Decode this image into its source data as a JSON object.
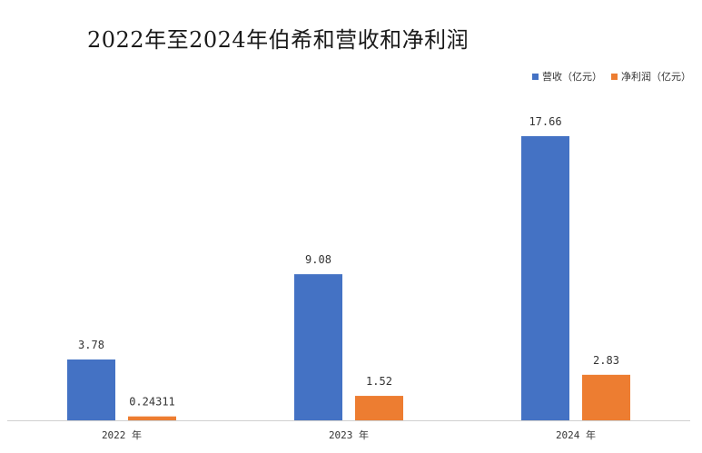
{
  "chart_data": {
    "type": "bar",
    "title": "2022年至2024年伯希和营收和净利润",
    "categories": [
      "2022 年",
      "2023 年",
      "2024 年"
    ],
    "series": [
      {
        "name": "营收（亿元）",
        "values": [
          3.78,
          9.08,
          17.66
        ],
        "labels": [
          "3.78",
          "9.08",
          "17.66"
        ],
        "color": "#4472C4"
      },
      {
        "name": "净利润（亿元）",
        "values": [
          0.24311,
          1.52,
          2.83
        ],
        "labels": [
          "0.24311",
          "1.52",
          "2.83"
        ],
        "color": "#ED7D31"
      }
    ],
    "xlabel": "",
    "ylabel": "",
    "ylim": [
      0,
      17.66
    ],
    "grid": false,
    "legend": "top-right"
  }
}
